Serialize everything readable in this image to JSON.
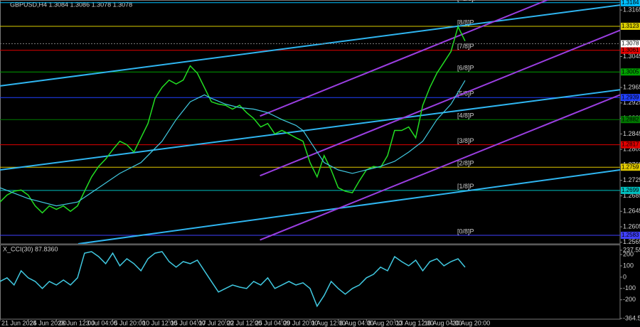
{
  "chart_data": [
    {
      "type": "line",
      "title": "GBPUSD,H4  1.3084 1.3086 1.3078 1.3078",
      "xlim": [
        0,
        88
      ],
      "xticks": [
        {
          "value": 0,
          "label": "21 Jun 2024"
        },
        {
          "value": 4,
          "label": "25 Jun 20:00"
        },
        {
          "value": 8,
          "label": "28 Jun 12:00"
        },
        {
          "value": 12,
          "label": "3 Jul 04:00"
        },
        {
          "value": 16,
          "label": "5 Jul 20:00"
        },
        {
          "value": 20,
          "label": "10 Jul 12:00"
        },
        {
          "value": 24,
          "label": "15 Jul 04:00"
        },
        {
          "value": 28,
          "label": "17 Jul 20:00"
        },
        {
          "value": 32,
          "label": "22 Jul 12:00"
        },
        {
          "value": 36,
          "label": "25 Jul 04:00"
        },
        {
          "value": 40,
          "label": "29 Jul 20:00"
        },
        {
          "value": 44,
          "label": "1 Aug 12:00"
        },
        {
          "value": 48,
          "label": "6 Aug 04:00"
        },
        {
          "value": 52,
          "label": "8 Aug 20:00"
        },
        {
          "value": 56,
          "label": "13 Aug 12:00"
        },
        {
          "value": 60,
          "label": "16 Aug 04:00"
        },
        {
          "value": 64,
          "label": "20 Aug 20:00"
        }
      ],
      "ylim": [
        1.2561,
        1.3191
      ],
      "yticks": [
        1.3165,
        1.3045,
        1.2965,
        1.2925,
        1.2885,
        1.2845,
        1.2805,
        1.2765,
        1.2725,
        1.2685,
        1.2645,
        1.2605,
        1.2565
      ],
      "last": 1.3078,
      "series": [
        {
          "color": "#22dd22",
          "values": [
            1.2669,
            1.2687,
            1.2697,
            1.27,
            1.2687,
            1.2659,
            1.2641,
            1.2659,
            1.265,
            1.2659,
            1.2645,
            1.2659,
            1.2697,
            1.2734,
            1.2761,
            1.278,
            1.2804,
            1.2826,
            1.2817,
            1.2798,
            1.2835,
            1.2872,
            1.2937,
            1.2965,
            1.2984,
            1.2974,
            1.2984,
            1.3021,
            1.3002,
            1.2965,
            1.2928,
            1.2922,
            1.2919,
            1.2909,
            1.2919,
            1.29,
            1.2885,
            1.2863,
            1.2872,
            1.2845,
            1.2854,
            1.2845,
            1.2835,
            1.2826,
            1.2771,
            1.2734,
            1.2789,
            1.2752,
            1.2706,
            1.2697,
            1.2693,
            1.2724,
            1.2752,
            1.2761,
            1.2758,
            1.2789,
            1.2854,
            1.2854,
            1.2863,
            1.2835,
            1.2919,
            1.2965,
            1.3002,
            1.303,
            1.3058,
            1.3122,
            1.3085
          ]
        },
        {
          "color": "#40c8e0",
          "x": [
            0,
            4,
            8,
            11,
            14,
            17,
            20,
            23,
            25,
            27,
            29,
            30,
            32,
            34,
            36,
            38,
            40,
            42,
            43,
            44,
            46,
            48,
            50,
            52,
            54,
            56,
            58,
            60,
            62,
            64,
            66
          ],
          "values": [
            1.2706,
            1.2678,
            1.2659,
            1.2669,
            1.2706,
            1.2743,
            1.2771,
            1.2826,
            1.2882,
            1.2928,
            1.2946,
            1.2937,
            1.2922,
            1.2913,
            1.2909,
            1.29,
            1.2882,
            1.2867,
            1.2854,
            1.2826,
            1.2771,
            1.2752,
            1.2743,
            1.2752,
            1.2761,
            1.2774,
            1.2798,
            1.2826,
            1.2882,
            1.2922,
            1.2983
          ]
        }
      ],
      "trendlines": [
        {
          "color": "#2fb5f0",
          "x": [
            0,
            88
          ],
          "values": [
            1.2969,
            1.3178
          ]
        },
        {
          "color": "#2fb5f0",
          "x": [
            0,
            88
          ],
          "values": [
            1.2752,
            1.2959
          ]
        },
        {
          "color": "#2fb5f0",
          "x": [
            11.1,
            88
          ],
          "values": [
            1.2561,
            1.2752
          ]
        },
        {
          "color": "#9a3ee0",
          "x": [
            36.9,
            88
          ],
          "values": [
            1.2737,
            1.3113
          ]
        },
        {
          "color": "#9a3ee0",
          "x": [
            36.9,
            88
          ],
          "values": [
            1.2571,
            1.2946
          ]
        },
        {
          "color": "#9a3ee0",
          "x": [
            36.9,
            88
          ],
          "values": [
            1.2891,
            1.3267
          ]
        }
      ],
      "levels": [
        {
          "value": 1.3184,
          "text": "[+1/8]P",
          "color": "#00bfff"
        },
        {
          "value": 1.3123,
          "text": "[8/8]P",
          "color": "#d8cc00"
        },
        {
          "value": 1.3061,
          "text": "[7/8]P",
          "color": "#e00000"
        },
        {
          "value": 1.3005,
          "text": "[6/8]P",
          "color": "#00a000"
        },
        {
          "value": 1.2939,
          "text": "[5/8]P",
          "color": "#2040ff"
        },
        {
          "value": 1.2882,
          "text": "[4/8]P",
          "color": "#007a00"
        },
        {
          "value": 1.2817,
          "text": "[3/8]P",
          "color": "#e00000"
        },
        {
          "value": 1.2759,
          "text": "[2/8]P",
          "color": "#e0c800"
        },
        {
          "value": 1.2699,
          "text": "[1/8]P",
          "color": "#00c0c0"
        },
        {
          "value": 1.2583,
          "text": "[0/8]P",
          "color": "#4040ff"
        }
      ]
    },
    {
      "type": "line",
      "title": "X_CCI(30) 87.8360",
      "xlim": [
        0,
        88
      ],
      "ylim": [
        -364.558,
        237.559
      ],
      "yticks": [
        237.559,
        200,
        100,
        0,
        -100,
        -200,
        -364.558
      ],
      "series": [
        {
          "color": "#40c8e0",
          "values": [
            -37.5,
            -6,
            -69,
            56,
            -6,
            -37.5,
            -100,
            -37.5,
            -69,
            -25,
            -69,
            -6,
            212,
            225,
            181,
            119,
            212,
            100,
            162,
            119,
            56,
            162,
            212,
            225,
            137,
            88,
            137,
            119,
            150,
            56,
            -37.5,
            -131,
            -100,
            -69,
            -88,
            -100,
            -37.5,
            -69,
            -6,
            -100,
            -69,
            -37.5,
            -69,
            -50,
            -100,
            -256,
            -162,
            -37.5,
            -100,
            -150,
            -100,
            -69,
            -6,
            25,
            88,
            56,
            181,
            137,
            100,
            150,
            56,
            137,
            162,
            100,
            137,
            162,
            87.836
          ]
        }
      ]
    }
  ]
}
